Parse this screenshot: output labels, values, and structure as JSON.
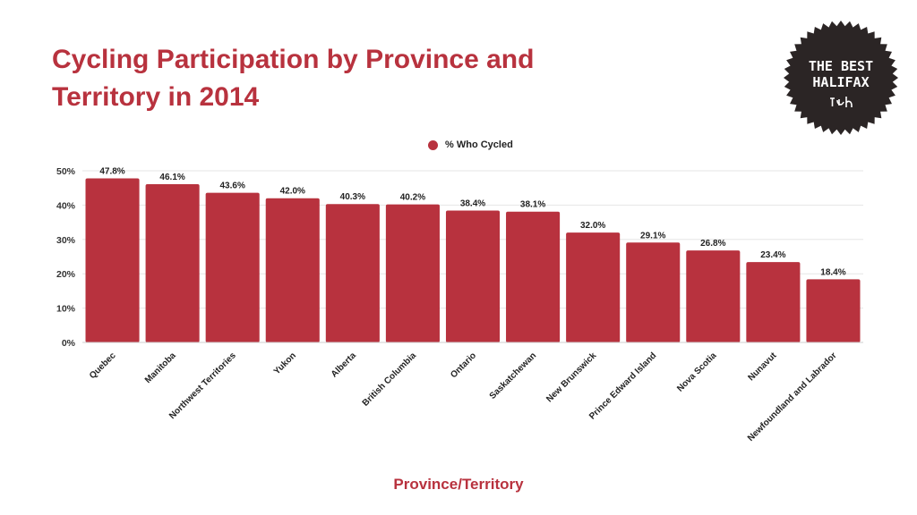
{
  "title": "Cycling Participation by Province and Territory in 2014",
  "badge": {
    "line1": "THE BEST",
    "line2": "HALIFAX",
    "icon": "halifax-logo-mark"
  },
  "colors": {
    "bar": "#b8323e",
    "title": "#b8323e",
    "badge_bg": "#2b2525",
    "badge_fg": "#ffffff"
  },
  "chart_data": {
    "type": "bar",
    "title": "Cycling Participation by Province and Territory in 2014",
    "xlabel": "Province/Territory",
    "ylabel": "",
    "ylim": [
      0,
      50
    ],
    "y_ticks": [
      "0%",
      "10%",
      "20%",
      "30%",
      "40%",
      "50%"
    ],
    "y_tick_values": [
      0,
      10,
      20,
      30,
      40,
      50
    ],
    "legend": {
      "position": "top-center",
      "entries": [
        "% Who Cycled"
      ]
    },
    "grid": true,
    "categories": [
      "Quebec",
      "Manitoba",
      "Northwest Territories",
      "Yukon",
      "Alberta",
      "British Columbia",
      "Ontario",
      "Saskatchewan",
      "New Brunswick",
      "Prince Edward Island",
      "Nova Scotia",
      "Nunavut",
      "Newfoundland and Labrador"
    ],
    "series": [
      {
        "name": "% Who Cycled",
        "values": [
          47.8,
          46.1,
          43.6,
          42.0,
          40.3,
          40.2,
          38.4,
          38.1,
          32.0,
          29.1,
          26.8,
          23.4,
          18.4
        ],
        "data_labels": [
          "47.8%",
          "46.1%",
          "43.6%",
          "42.0%",
          "40.3%",
          "40.2%",
          "38.4%",
          "38.1%",
          "32.0%",
          "29.1%",
          "26.8%",
          "23.4%",
          "18.4%"
        ]
      }
    ]
  }
}
